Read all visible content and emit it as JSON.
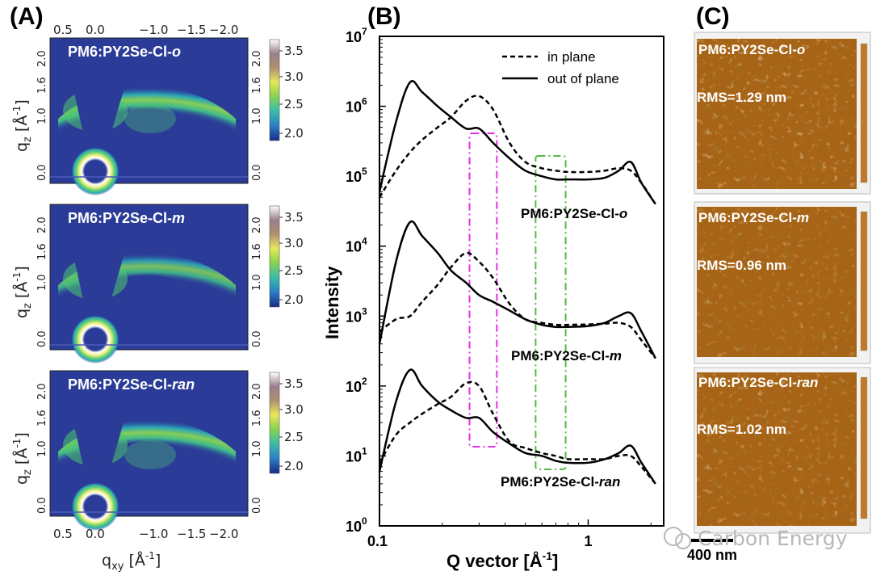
{
  "panels": {
    "a": {
      "label": "(A)",
      "top_ticks": [
        "0.5",
        "0.0",
        "−1.0",
        "−1.5",
        "−2.0"
      ],
      "bottom_ticks": [
        "0.5",
        "0.0",
        "−1.0",
        "−1.5",
        "−2.0"
      ],
      "qz_ticks": [
        "2.0",
        "1.6",
        "1.0",
        "0.0"
      ],
      "right_ticks": [
        "2.0",
        "1.6",
        "1.0",
        "0.0"
      ],
      "colorbar_ticks": [
        "3.5",
        "3.0",
        "2.5",
        "2.0"
      ],
      "ylabel": "q",
      "ylabel_sub": "z",
      "ylabel_unit": "[Å",
      "ylabel_unit_sup": "-1",
      "ylabel_close": "]",
      "xlabel": "q",
      "xlabel_sub": "xy",
      "xlabel_unit": "[Å",
      "xlabel_unit_sup": "-1",
      "xlabel_close": "]",
      "samples": [
        {
          "prefix": "PM6:PY2Se-Cl-",
          "suffix": "o"
        },
        {
          "prefix": "PM6:PY2Se-Cl-",
          "suffix": "m"
        },
        {
          "prefix": "PM6:PY2Se-Cl-",
          "suffix": "ran"
        }
      ]
    },
    "b": {
      "label": "(B)",
      "legend": [
        "in plane",
        "out of plane"
      ],
      "ylabel": "Intensity",
      "xlabel": "Q vector [Å",
      "xlabel_sup": "-1",
      "xlabel_close": "]",
      "ytick_base": "10",
      "ytick_exps": [
        "7",
        "6",
        "5",
        "4",
        "3",
        "2",
        "1",
        "0"
      ],
      "xticks": [
        "0.1",
        "1"
      ],
      "curve_labels": [
        {
          "prefix": "PM6:PY2Se-Cl-",
          "suffix": "o",
          "color": "#e8232c"
        },
        {
          "prefix": "PM6:PY2Se-Cl-",
          "suffix": "m",
          "color": "#f7941d"
        },
        {
          "prefix": "PM6:PY2Se-Cl-",
          "suffix": "ran",
          "color": "#1f1fd6"
        }
      ],
      "highlight_colors": [
        "#e62ee6",
        "#58b848"
      ]
    },
    "c": {
      "label": "(C)",
      "images": [
        {
          "prefix": "PM6:PY2Se-Cl-",
          "suffix": "o",
          "rms": "RMS=1.29 nm"
        },
        {
          "prefix": "PM6:PY2Se-Cl-",
          "suffix": "m",
          "rms": "RMS=0.96 nm"
        },
        {
          "prefix": "PM6:PY2Se-Cl-",
          "suffix": "ran",
          "rms": "RMS=1.02 nm"
        }
      ],
      "scale_bar": "400 nm",
      "watermark": "Carbon Energy"
    }
  },
  "chart_data": {
    "type": "line",
    "title": "",
    "xlabel": "Q vector [Å-1]",
    "ylabel": "Intensity",
    "xscale": "log",
    "yscale": "log",
    "xlim": [
      0.1,
      2.3
    ],
    "ylim": [
      1,
      10000000
    ],
    "x": [
      0.1,
      0.12,
      0.14,
      0.16,
      0.19,
      0.22,
      0.26,
      0.3,
      0.35,
      0.42,
      0.5,
      0.6,
      0.7,
      0.8,
      1.0,
      1.2,
      1.4,
      1.6,
      1.8,
      2.1
    ],
    "series": [
      {
        "name": "PM6:PY2Se-Cl-o out of plane",
        "values": [
          60000,
          600000,
          2200000,
          1600000,
          1000000,
          700000,
          480000,
          480000,
          300000,
          180000,
          120000,
          100000,
          90000,
          90000,
          90000,
          95000,
          120000,
          160000,
          80000,
          40000
        ]
      },
      {
        "name": "PM6:PY2Se-Cl-o in plane",
        "values": [
          50000,
          120000,
          220000,
          330000,
          500000,
          700000,
          1200000,
          1400000,
          900000,
          300000,
          160000,
          130000,
          120000,
          115000,
          115000,
          120000,
          130000,
          120000,
          80000,
          40000
        ]
      },
      {
        "name": "PM6:PY2Se-Cl-m out of plane",
        "values": [
          400,
          6000,
          22000,
          14000,
          8000,
          4500,
          3000,
          2000,
          1600,
          1200,
          900,
          750,
          700,
          700,
          720,
          800,
          1000,
          1100,
          600,
          250
        ]
      },
      {
        "name": "PM6:PY2Se-Cl-m in plane",
        "values": [
          600,
          900,
          1000,
          1600,
          2800,
          5000,
          8000,
          6000,
          3500,
          1500,
          900,
          800,
          750,
          750,
          760,
          780,
          800,
          700,
          450,
          250
        ]
      },
      {
        "name": "PM6:PY2Se-Cl-ran out of plane",
        "values": [
          6,
          60,
          170,
          100,
          60,
          45,
          35,
          35,
          22,
          15,
          11,
          10,
          8.5,
          8,
          8,
          9,
          11,
          14,
          8,
          4
        ]
      },
      {
        "name": "PM6:PY2Se-Cl-ran in plane",
        "values": [
          8,
          20,
          30,
          40,
          55,
          70,
          110,
          100,
          40,
          16,
          13,
          11,
          10,
          9,
          9,
          9,
          10,
          10,
          7,
          4
        ]
      }
    ]
  }
}
